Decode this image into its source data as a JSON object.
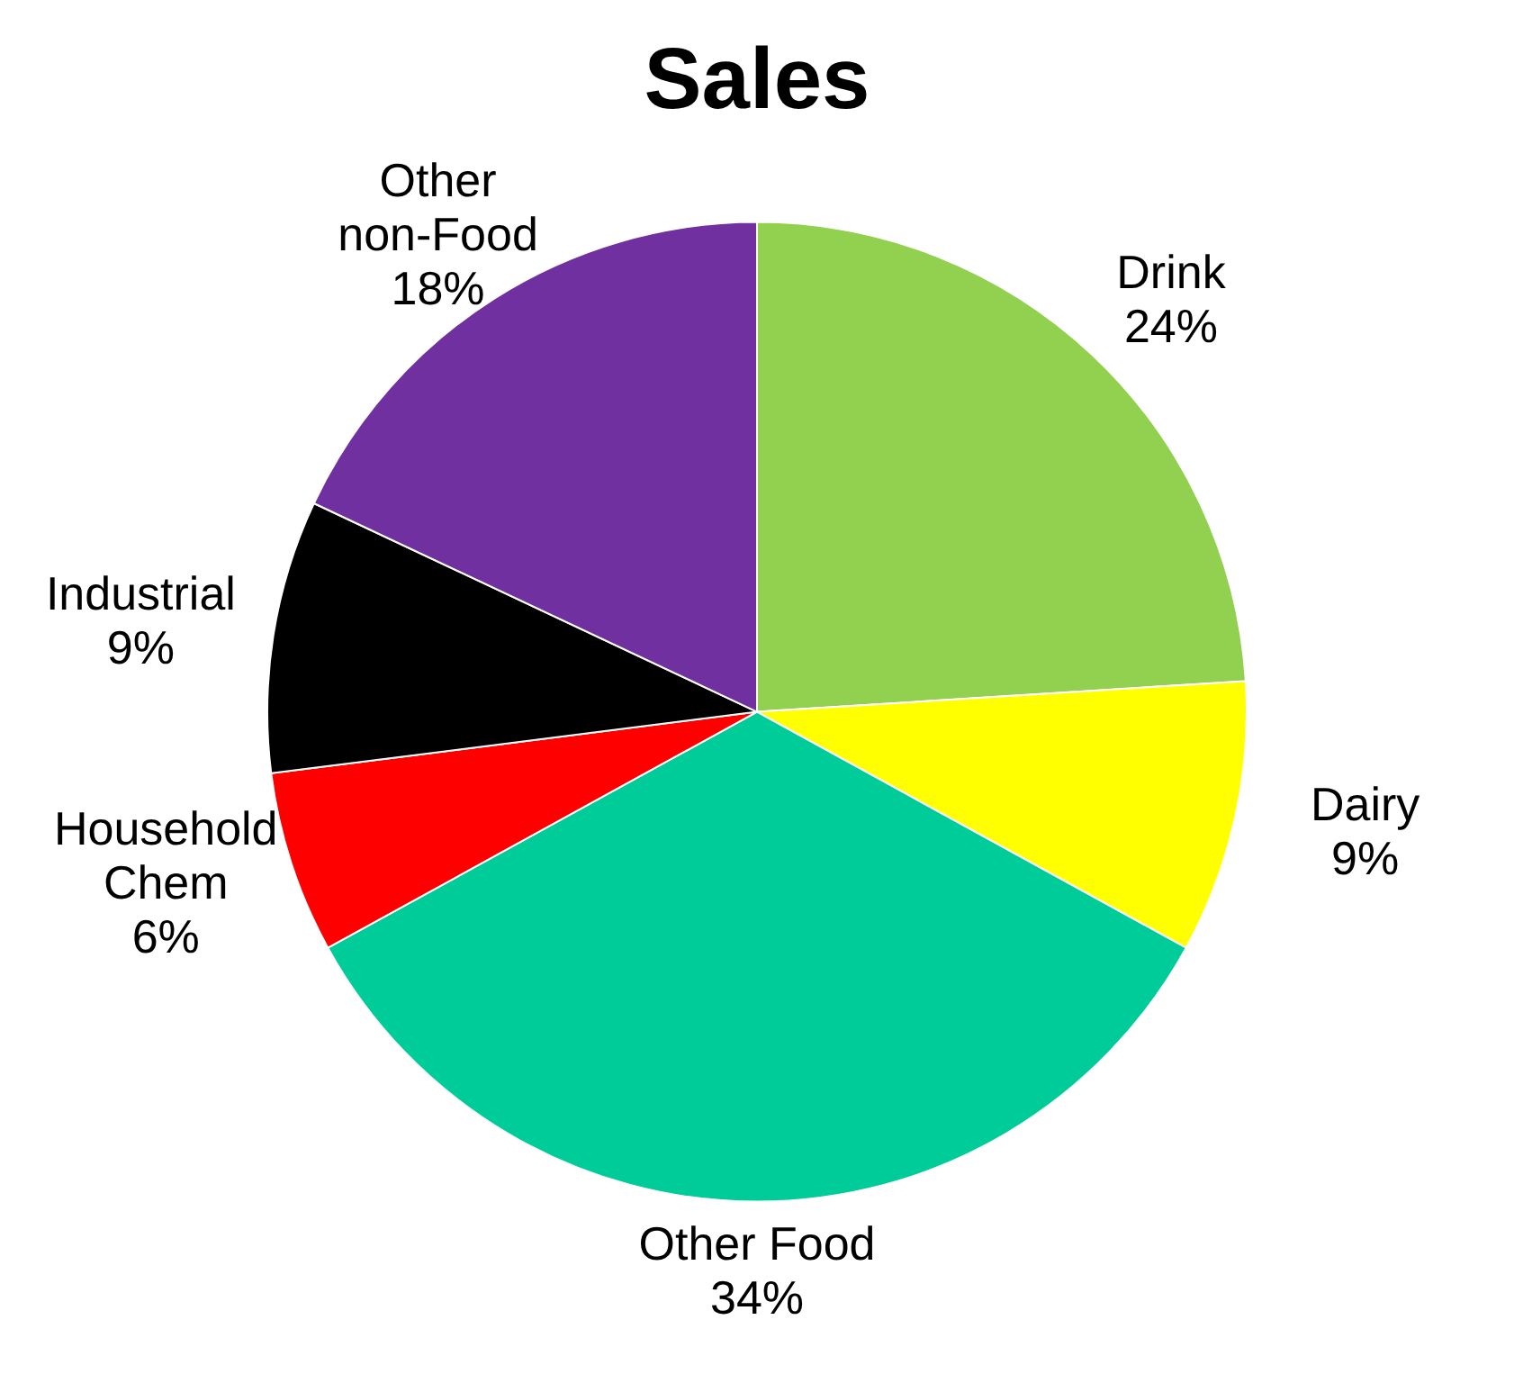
{
  "chart_data": {
    "type": "pie",
    "title": "Sales",
    "categories": [
      "Drink",
      "Dairy",
      "Other Food",
      "Household Chem",
      "Industrial",
      "Other non-Food"
    ],
    "values": [
      24,
      9,
      34,
      6,
      9,
      18
    ],
    "value_labels": [
      "24%",
      "9%",
      "34%",
      "6%",
      "9%",
      "18%"
    ],
    "colors": [
      "#92d050",
      "#ffff00",
      "#00cc99",
      "#ff0000",
      "#000000",
      "#7030a0"
    ],
    "legend": false
  }
}
